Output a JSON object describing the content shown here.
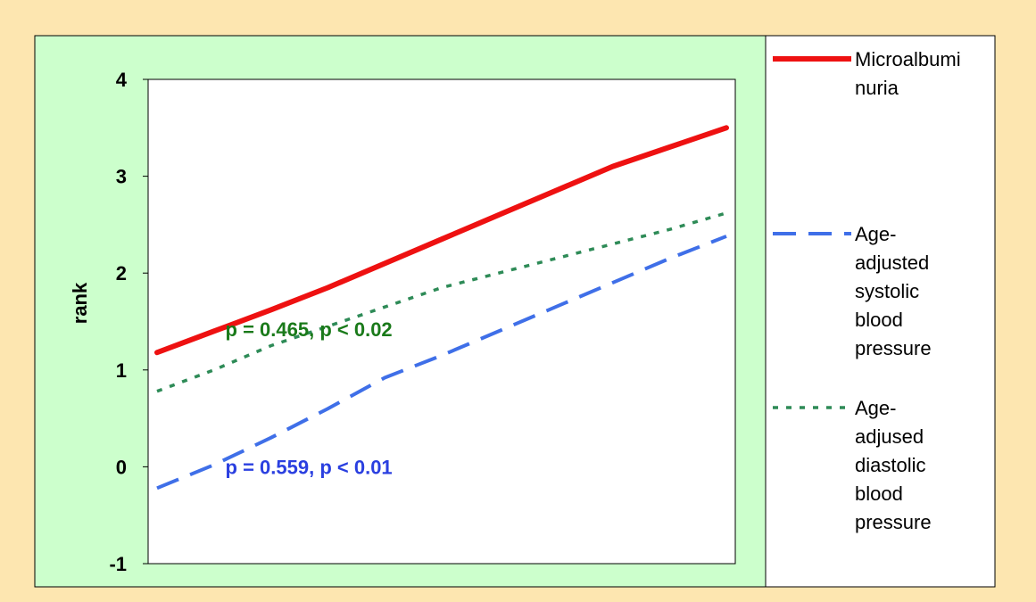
{
  "chart_data": {
    "type": "line",
    "ylabel": "rank",
    "xlabel": "",
    "ylim": [
      -1,
      4
    ],
    "yticks": [
      "4",
      "3",
      "2",
      "1",
      "0",
      "-1"
    ],
    "grid": false,
    "legend_position": "right",
    "x": [
      0,
      1,
      2,
      3,
      4,
      5,
      6,
      7,
      8,
      9,
      10
    ],
    "series": [
      {
        "name": "Microalbuminuria",
        "legend_lines": [
          "Microalbumi",
          "nuria"
        ],
        "color": "#ee1111",
        "style": "solid",
        "values": [
          1.18,
          1.4,
          1.62,
          1.85,
          2.1,
          2.35,
          2.6,
          2.85,
          3.1,
          3.3,
          3.5
        ]
      },
      {
        "name": "Age-adjusted systolic blood pressure",
        "legend_lines": [
          "Age-",
          "adjusted",
          "systolic",
          "blood",
          "pressure"
        ],
        "color": "#3f6fe8",
        "style": "dashed",
        "values": [
          -0.22,
          0.02,
          0.3,
          0.6,
          0.92,
          1.15,
          1.4,
          1.65,
          1.9,
          2.15,
          2.38
        ]
      },
      {
        "name": "Age-adjused diastolic blood pressure",
        "legend_lines": [
          "Age-",
          "adjused",
          "diastolic",
          "blood",
          "pressure"
        ],
        "color": "#2e8b57",
        "style": "dotted",
        "values": [
          0.78,
          1.0,
          1.25,
          1.45,
          1.65,
          1.85,
          2.0,
          2.15,
          2.3,
          2.45,
          2.62
        ]
      }
    ],
    "annotations": [
      {
        "text": "p = 0.465, p < 0.02",
        "color": "#1a7a1a",
        "x": 1.2,
        "y": 1.42
      },
      {
        "text": "p = 0.559, p < 0.01",
        "color": "#2a3fe0",
        "x": 1.2,
        "y": 0.0
      }
    ]
  }
}
